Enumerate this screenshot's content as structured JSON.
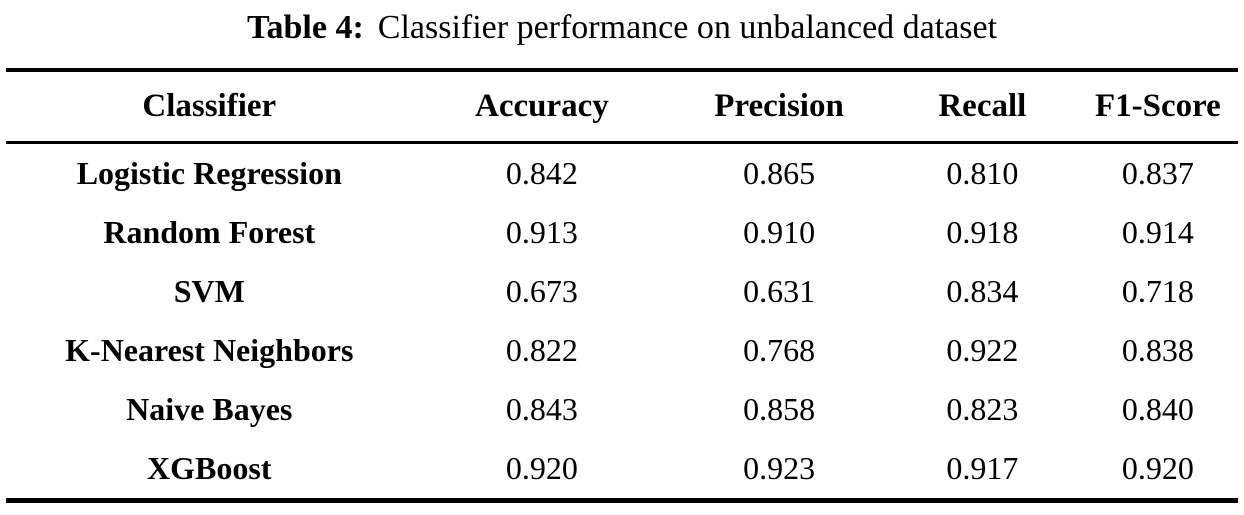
{
  "caption": {
    "label": "Table 4:",
    "text": "Classifier performance on unbalanced dataset"
  },
  "table": {
    "columns": [
      "Classifier",
      "Accuracy",
      "Precision",
      "Recall",
      "F1-Score"
    ],
    "rows": [
      {
        "classifier": "Logistic Regression",
        "accuracy": "0.842",
        "precision": "0.865",
        "recall": "0.810",
        "f1_score": "0.837"
      },
      {
        "classifier": "Random Forest",
        "accuracy": "0.913",
        "precision": "0.910",
        "recall": "0.918",
        "f1_score": "0.914"
      },
      {
        "classifier": "SVM",
        "accuracy": "0.673",
        "precision": "0.631",
        "recall": "0.834",
        "f1_score": "0.718"
      },
      {
        "classifier": "K-Nearest Neighbors",
        "accuracy": "0.822",
        "precision": "0.768",
        "recall": "0.922",
        "f1_score": "0.838"
      },
      {
        "classifier": "Naive Bayes",
        "accuracy": "0.843",
        "precision": "0.858",
        "recall": "0.823",
        "f1_score": "0.840"
      },
      {
        "classifier": "XGBoost",
        "accuracy": "0.920",
        "precision": "0.923",
        "recall": "0.917",
        "f1_score": "0.920"
      }
    ],
    "text_color": "#000000",
    "rule_color": "#000000",
    "background_color": "#ffffff"
  }
}
